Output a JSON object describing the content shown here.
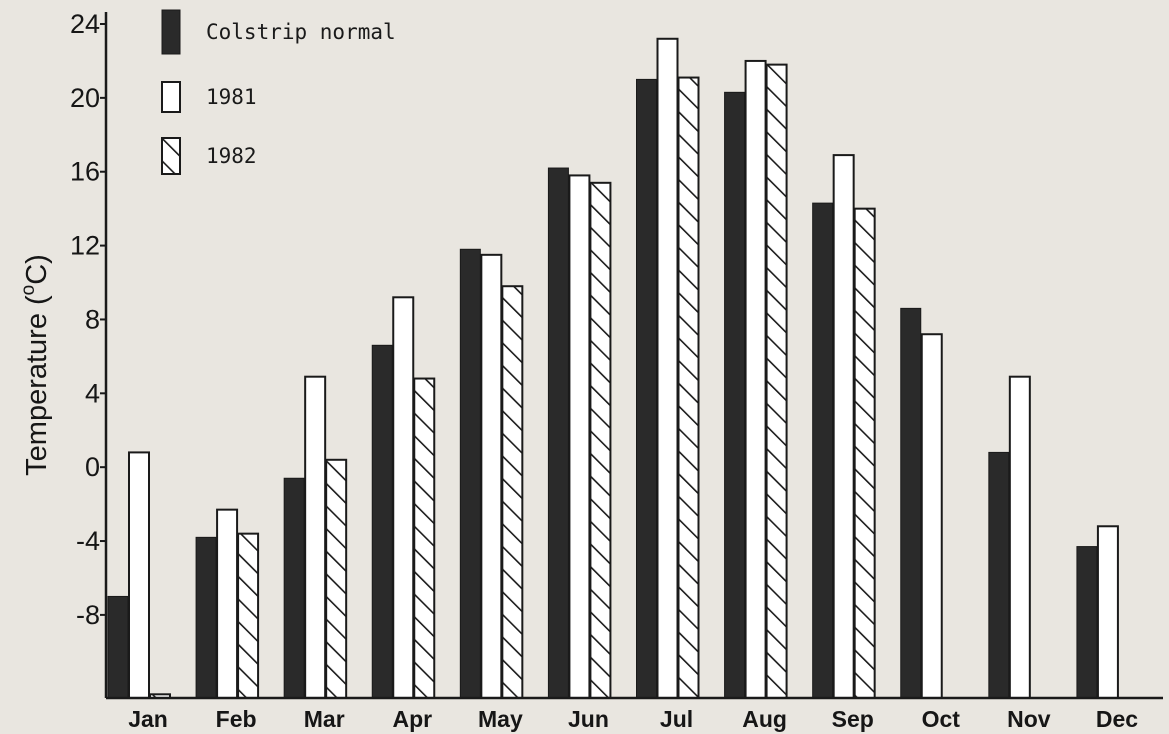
{
  "chart_data": {
    "type": "bar",
    "title": "",
    "xlabel": "",
    "ylabel_main": "Temperature (",
    "ylabel_sup": "o",
    "ylabel_end": "C)",
    "ylim": [
      -12.5,
      24
    ],
    "yticks": [
      24,
      20,
      16,
      12,
      8,
      4,
      0,
      -4,
      -8
    ],
    "ytick_labels": [
      "24",
      "20",
      "16",
      "12",
      "8",
      "4",
      "0",
      "-4",
      "-8"
    ],
    "categories": [
      "Jan",
      "Feb",
      "Mar",
      "Apr",
      "May",
      "Jun",
      "Jul",
      "Aug",
      "Sep",
      "Oct",
      "Nov",
      "Dec"
    ],
    "series": [
      {
        "name": "Colstrip normal",
        "fill": "solid",
        "color": "#2a2a2a",
        "values": [
          -7.0,
          -3.8,
          -0.6,
          6.6,
          11.8,
          16.2,
          21.0,
          20.3,
          14.3,
          8.6,
          0.8,
          -4.3
        ]
      },
      {
        "name": "1981",
        "fill": "open",
        "color": "#ffffff",
        "values": [
          0.8,
          -2.3,
          4.9,
          9.2,
          11.5,
          15.8,
          23.2,
          22.0,
          16.9,
          7.2,
          4.9,
          -3.2
        ]
      },
      {
        "name": "1982",
        "fill": "hatched",
        "color": "#ffffff",
        "values": [
          -12.3,
          -3.6,
          0.4,
          4.8,
          9.8,
          15.4,
          21.1,
          21.8,
          14.0,
          null,
          null,
          null
        ]
      }
    ],
    "legend_position": "top-left",
    "grid": false
  }
}
